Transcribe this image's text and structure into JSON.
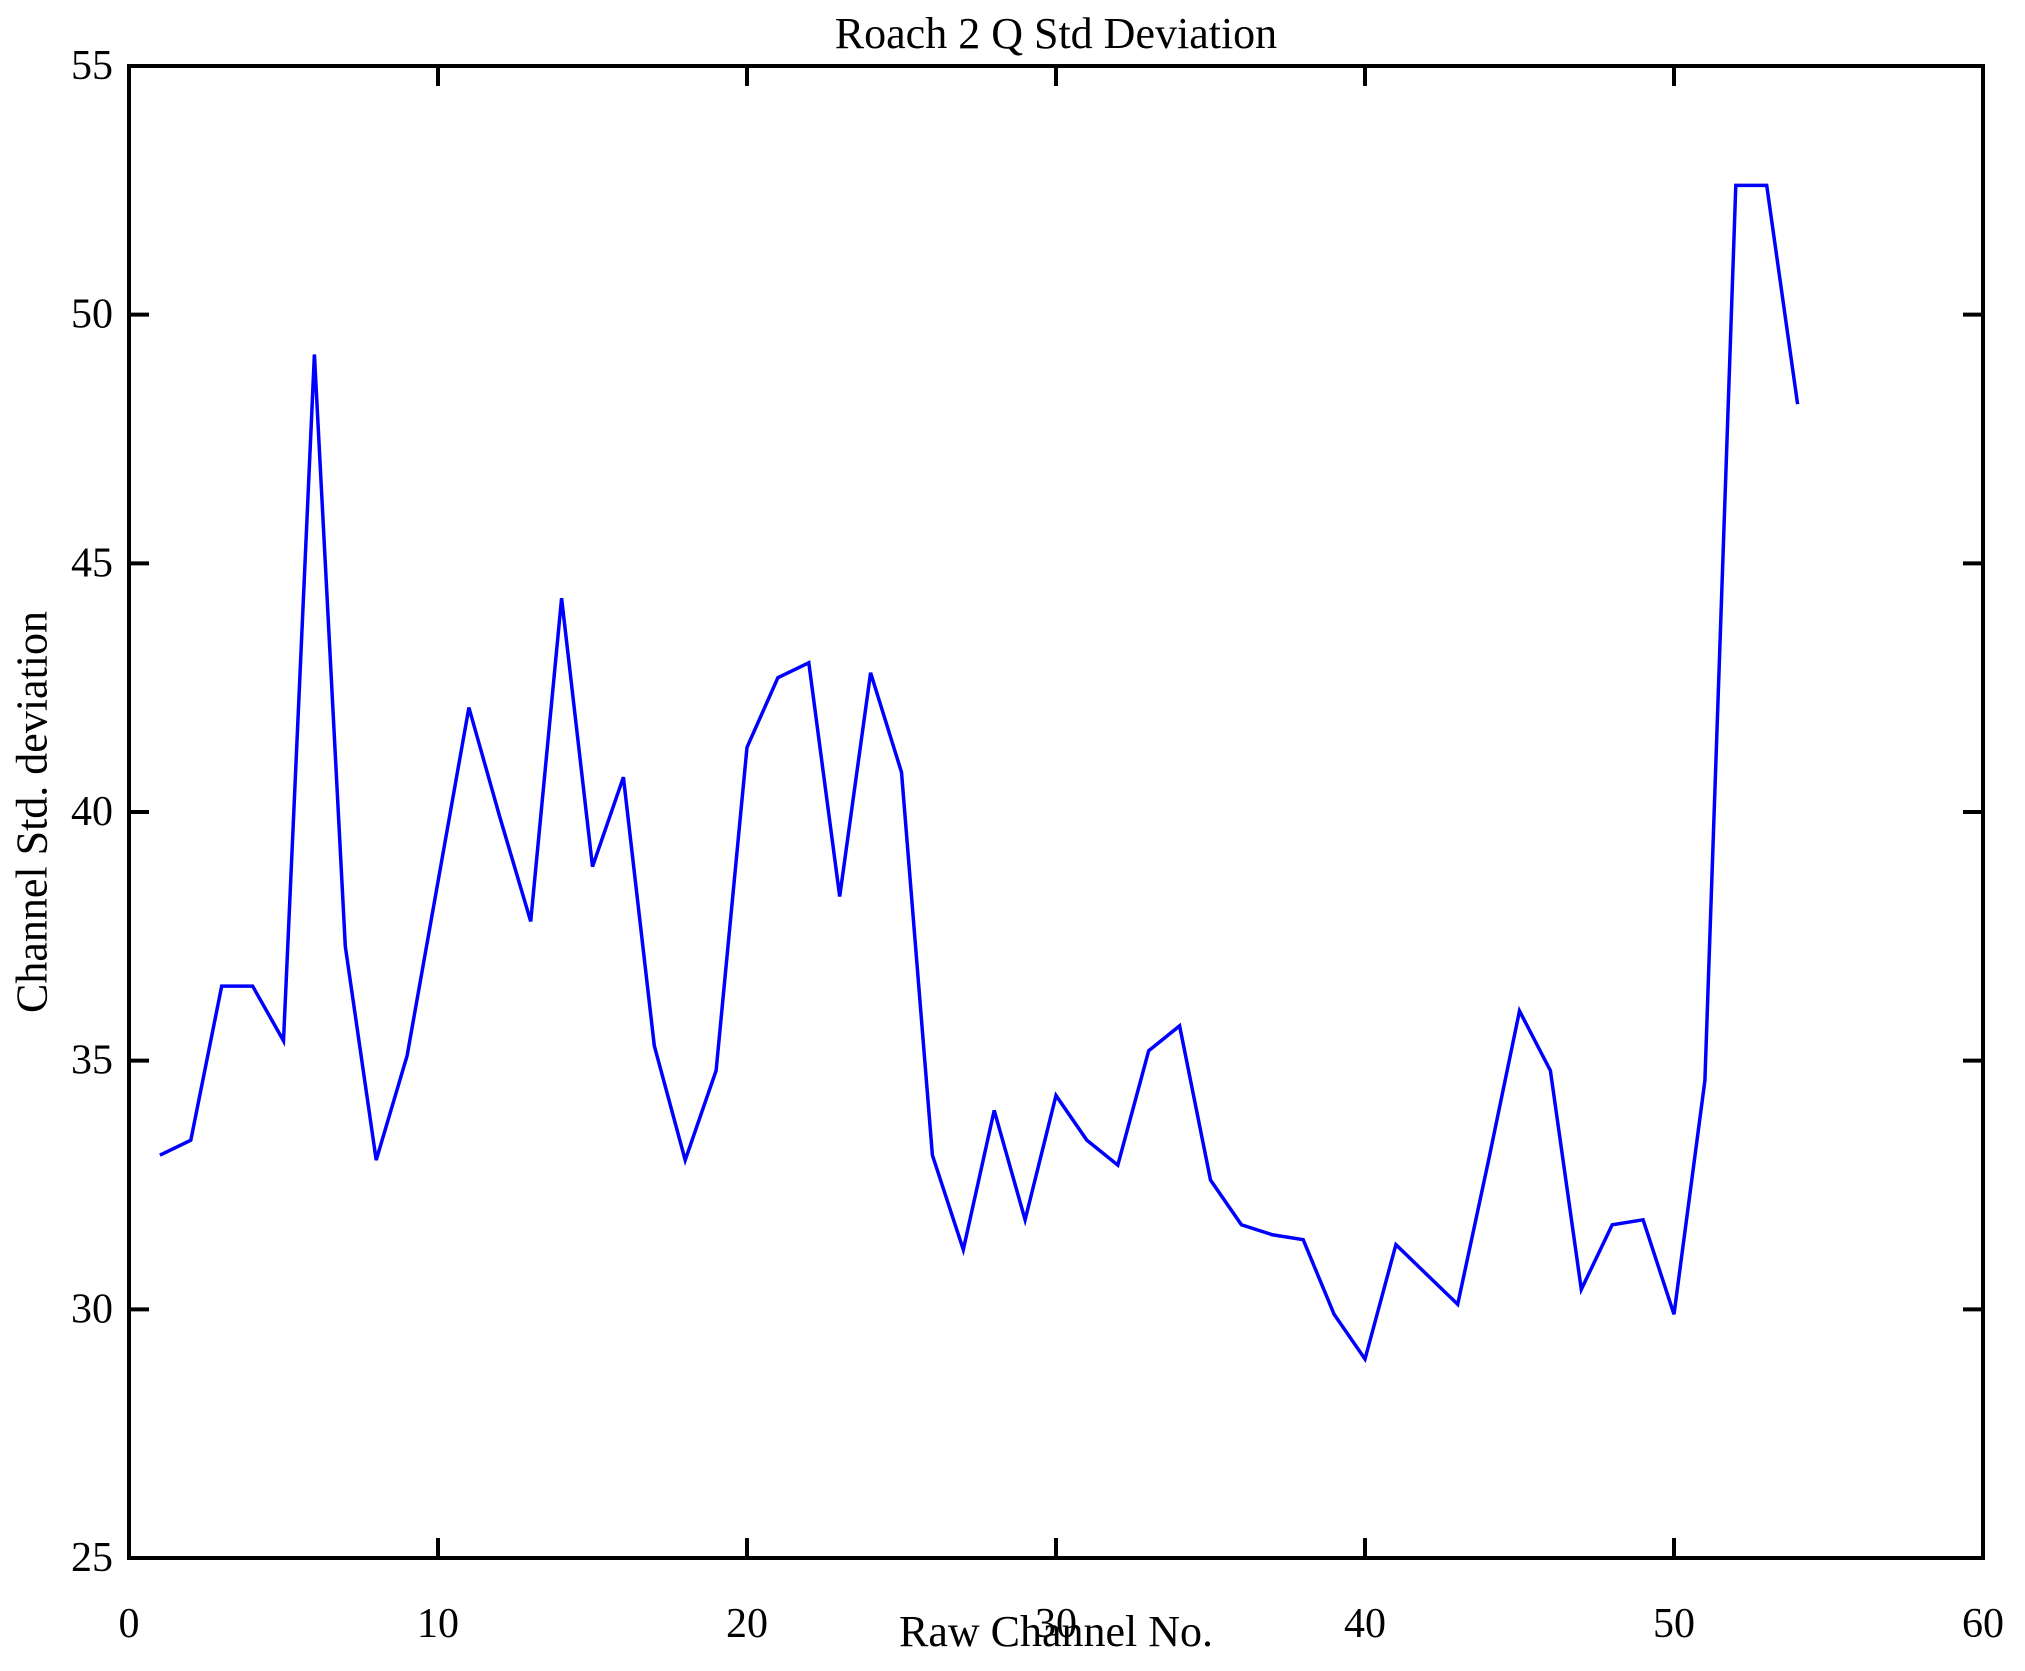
{
  "figure": {
    "background": "#ffffff",
    "axis_color": "#000000"
  },
  "chart_data": {
    "type": "line",
    "title": "Roach 2 Q Std Deviation",
    "xlabel": "Raw Channel No.",
    "ylabel": "Channel Std. deviation",
    "xlim": [
      0,
      60
    ],
    "ylim": [
      25,
      55
    ],
    "xticks": [
      0,
      10,
      20,
      30,
      40,
      50,
      60
    ],
    "yticks": [
      25,
      30,
      35,
      40,
      45,
      50,
      55
    ],
    "grid": false,
    "legend": null,
    "line_color": "#0000ff",
    "x": [
      1,
      2,
      3,
      4,
      5,
      6,
      7,
      8,
      9,
      10,
      11,
      12,
      13,
      14,
      15,
      16,
      17,
      18,
      19,
      20,
      21,
      22,
      23,
      24,
      25,
      26,
      27,
      28,
      29,
      30,
      31,
      32,
      33,
      34,
      35,
      36,
      37,
      38,
      39,
      40,
      41,
      42,
      43,
      44,
      45,
      46,
      47,
      48,
      49,
      50,
      51,
      52,
      53,
      54
    ],
    "values": [
      33.1,
      33.4,
      36.5,
      36.5,
      35.4,
      49.2,
      37.3,
      33.0,
      35.1,
      38.6,
      42.1,
      39.9,
      37.8,
      44.3,
      38.9,
      40.7,
      35.3,
      33.0,
      34.8,
      41.3,
      42.7,
      43.0,
      38.3,
      42.8,
      40.8,
      33.1,
      31.2,
      34.0,
      31.8,
      34.3,
      33.4,
      32.9,
      35.2,
      35.7,
      32.6,
      31.7,
      31.5,
      31.4,
      29.9,
      29.0,
      31.3,
      30.7,
      30.1,
      33.0,
      36.0,
      34.8,
      30.4,
      31.7,
      31.8,
      29.9,
      34.6,
      52.6,
      52.6,
      48.2
    ]
  }
}
